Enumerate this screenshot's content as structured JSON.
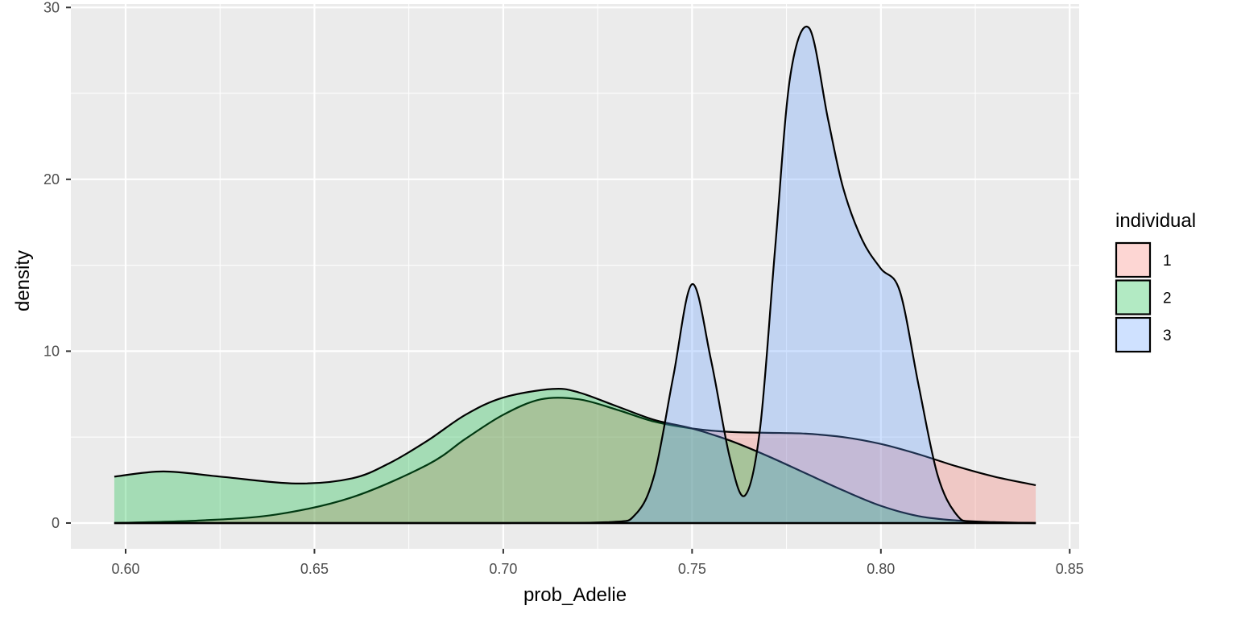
{
  "chart_data": {
    "type": "area",
    "subtype": "density",
    "title": "",
    "xlabel": "prob_Adelie",
    "ylabel": "density",
    "xlim": [
      0.5855,
      0.8525
    ],
    "ylim": [
      -1.5,
      30.2
    ],
    "x_ticks": [
      0.6,
      0.65,
      0.7,
      0.75,
      0.8,
      0.85
    ],
    "x_tick_labels": [
      "0.60",
      "0.65",
      "0.70",
      "0.75",
      "0.80",
      "0.85"
    ],
    "y_ticks": [
      0,
      10,
      20,
      30
    ],
    "y_tick_labels": [
      "0",
      "10",
      "20",
      "30"
    ],
    "grid": true,
    "legend": {
      "title": "individual",
      "position": "right"
    },
    "fill_opacity": 0.3,
    "series": [
      {
        "name": "1",
        "color": "#F8766D",
        "x": [
          0.597,
          0.62,
          0.64,
          0.66,
          0.68,
          0.69,
          0.7,
          0.71,
          0.72,
          0.73,
          0.74,
          0.75,
          0.76,
          0.77,
          0.78,
          0.79,
          0.8,
          0.81,
          0.82,
          0.83,
          0.841
        ],
        "y": [
          0.0,
          0.15,
          0.5,
          1.5,
          3.4,
          4.9,
          6.3,
          7.2,
          7.2,
          6.6,
          5.9,
          5.5,
          5.3,
          5.25,
          5.2,
          5.0,
          4.6,
          4.0,
          3.3,
          2.7,
          2.2
        ]
      },
      {
        "name": "2",
        "color": "#00BA38",
        "x": [
          0.597,
          0.61,
          0.625,
          0.645,
          0.66,
          0.67,
          0.68,
          0.69,
          0.7,
          0.713,
          0.72,
          0.73,
          0.74,
          0.75,
          0.76,
          0.77,
          0.78,
          0.79,
          0.8,
          0.81,
          0.82,
          0.83,
          0.841
        ],
        "y": [
          2.7,
          3.0,
          2.7,
          2.3,
          2.6,
          3.5,
          4.8,
          6.3,
          7.3,
          7.8,
          7.6,
          6.8,
          6.0,
          5.5,
          4.8,
          3.9,
          2.9,
          1.9,
          1.0,
          0.4,
          0.15,
          0.05,
          0.0
        ]
      },
      {
        "name": "3",
        "color": "#619CFF",
        "x": [
          0.597,
          0.7,
          0.728,
          0.735,
          0.74,
          0.745,
          0.75,
          0.755,
          0.76,
          0.764,
          0.768,
          0.772,
          0.776,
          0.781,
          0.786,
          0.79,
          0.795,
          0.8,
          0.805,
          0.81,
          0.815,
          0.82,
          0.825,
          0.841
        ],
        "y": [
          0.0,
          0.0,
          0.05,
          0.5,
          2.8,
          8.5,
          13.9,
          9.5,
          3.8,
          1.6,
          5.5,
          16.0,
          26.0,
          28.8,
          23.5,
          19.5,
          16.5,
          14.8,
          13.5,
          8.0,
          2.8,
          0.5,
          0.05,
          0.0
        ]
      }
    ]
  }
}
